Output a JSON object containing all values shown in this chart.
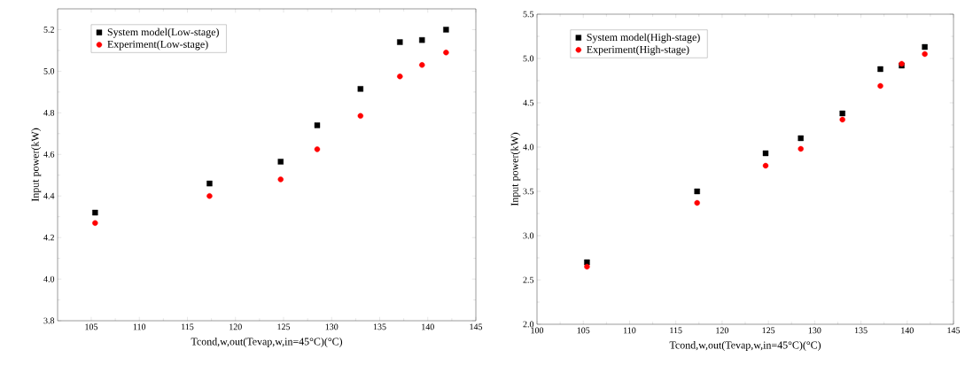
{
  "chart_data": [
    {
      "type": "scatter",
      "xlabel": "Tcond,w,out(Tevap,w,in=45°C)(°C)",
      "ylabel": "Input power(kW)",
      "x": [
        105.4,
        117.3,
        124.7,
        128.5,
        133.0,
        137.1,
        139.4,
        141.9
      ],
      "series": [
        {
          "name": "System model(Low-stage)",
          "color": "#000000",
          "marker": "square",
          "values": [
            4.32,
            4.46,
            4.565,
            4.74,
            4.915,
            5.14,
            5.15,
            5.2
          ]
        },
        {
          "name": "Experiment(Low-stage)",
          "color": "#ff0000",
          "marker": "circle",
          "values": [
            4.27,
            4.4,
            4.48,
            4.625,
            4.785,
            4.975,
            5.03,
            5.09
          ]
        }
      ],
      "xlim": [
        101.5,
        145
      ],
      "xticks": [
        105,
        110,
        115,
        120,
        125,
        130,
        135,
        140,
        145
      ],
      "ylim": [
        3.8,
        5.3
      ],
      "yticks": [
        {
          "value": 3.8,
          "label": "3.8"
        },
        {
          "value": 4.0,
          "label": "4.0"
        },
        {
          "value": 4.2,
          "label": "4.2"
        },
        {
          "value": 4.4,
          "label": "4.4"
        },
        {
          "value": 4.6,
          "label": "4.6"
        },
        {
          "value": 4.8,
          "label": "4.8"
        },
        {
          "value": 5.0,
          "label": "5.0"
        },
        {
          "value": 5.2,
          "label": "5.2"
        }
      ],
      "legend": "top left",
      "grid": false
    },
    {
      "type": "scatter",
      "xlabel": "Tcond,w,out(Tevap,w,in=45°C)(°C)",
      "ylabel": "Input power(kW)",
      "x": [
        105.4,
        117.3,
        124.7,
        128.5,
        133.0,
        137.1,
        139.4,
        141.9
      ],
      "series": [
        {
          "name": "System model(High-stage)",
          "color": "#000000",
          "marker": "square",
          "values": [
            2.7,
            3.5,
            3.93,
            4.1,
            4.38,
            4.88,
            4.92,
            5.13
          ]
        },
        {
          "name": "Experiment(High-stage)",
          "color": "#ff0000",
          "marker": "circle",
          "values": [
            2.65,
            3.37,
            3.79,
            3.98,
            4.31,
            4.69,
            4.94,
            5.05
          ]
        }
      ],
      "xlim": [
        100,
        145
      ],
      "xticks": [
        100,
        105,
        110,
        115,
        120,
        125,
        130,
        135,
        140,
        145
      ],
      "ylim": [
        2.0,
        5.5
      ],
      "yticks": [
        {
          "value": 2.0,
          "label": "2.0"
        },
        {
          "value": 2.5,
          "label": "2.5"
        },
        {
          "value": 3.0,
          "label": "3.0"
        },
        {
          "value": 3.5,
          "label": "3.5"
        },
        {
          "value": 4.0,
          "label": "4.0"
        },
        {
          "value": 4.5,
          "label": "4.5"
        },
        {
          "value": 5.0,
          "label": "5.0"
        },
        {
          "value": 5.5,
          "label": "5.5"
        }
      ],
      "legend": "top left",
      "grid": false
    }
  ]
}
